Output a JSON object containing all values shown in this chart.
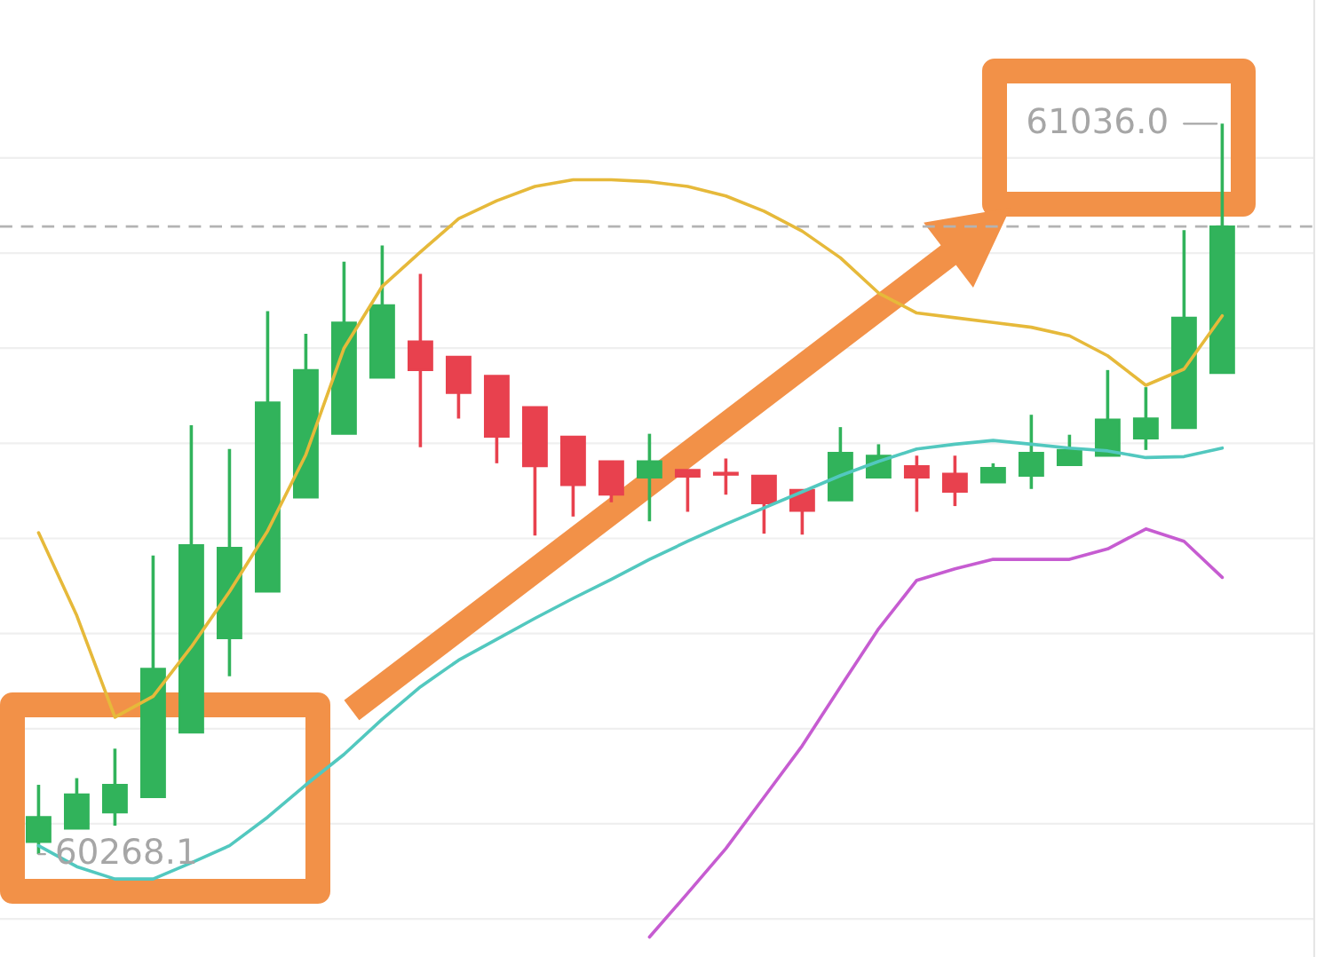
{
  "chart_data": {
    "type": "candlestick",
    "categories": [
      null,
      null,
      null,
      null,
      null,
      null,
      null,
      null,
      null,
      null,
      null,
      null,
      null,
      null,
      null,
      null,
      null,
      null,
      null,
      null,
      null,
      null,
      null,
      null,
      null,
      null,
      null,
      null,
      null,
      null,
      null,
      null
    ],
    "ohlc": [
      [
        60281,
        60341,
        60268.1,
        60307
      ],
      [
        60295,
        60348,
        60295,
        60331
      ],
      [
        60312,
        60379,
        60298,
        60341
      ],
      [
        60328,
        60582,
        60328,
        60463
      ],
      [
        60396,
        60719,
        60396,
        60593
      ],
      [
        60495,
        60694,
        60455,
        60590
      ],
      [
        60544,
        60839,
        60544,
        60743
      ],
      [
        60643,
        60815,
        60643,
        60777
      ],
      [
        60710,
        60891,
        60710,
        60827
      ],
      [
        60769,
        60908,
        60769,
        60845
      ],
      [
        60807,
        60878,
        60696,
        60777
      ],
      [
        60791,
        60791,
        60726,
        60753
      ],
      [
        60771,
        60771,
        60679,
        60707
      ],
      [
        60738,
        60738,
        60603,
        60676
      ],
      [
        60707,
        60707,
        60623,
        60656
      ],
      [
        60681,
        60681,
        60638,
        60646
      ],
      [
        60664,
        60710,
        60618,
        60681
      ],
      [
        60672,
        60672,
        60628,
        60665
      ],
      [
        60669,
        60684,
        60646,
        60667
      ],
      [
        60666,
        60666,
        60605,
        60637
      ],
      [
        60651,
        60651,
        60604,
        60629
      ],
      [
        60640,
        60717,
        60640,
        60690
      ],
      [
        60664,
        60699,
        60664,
        60687
      ],
      [
        60676,
        60687,
        60628,
        60664
      ],
      [
        60668,
        60687,
        60634,
        60649
      ],
      [
        60659,
        60679,
        60659,
        60674
      ],
      [
        60666,
        60730,
        60652,
        60690
      ],
      [
        60677,
        60709,
        60677,
        60693
      ],
      [
        60687,
        60777,
        60687,
        60725
      ],
      [
        60705,
        60759,
        60693,
        60726
      ],
      [
        60716,
        60924,
        60716,
        60832
      ],
      [
        60774,
        61036.0,
        60774,
        60928
      ]
    ],
    "colors": [
      "#31b35b",
      "#31b35b",
      "#31b35b",
      "#31b35b",
      "#31b35b",
      "#31b35b",
      "#31b35b",
      "#31b35b",
      "#31b35b",
      "#31b35b",
      "#e8414e",
      "#e8414e",
      "#e8414e",
      "#e8414e",
      "#e8414e",
      "#e8414e",
      "#31b35b",
      "#e8414e",
      "#e8414e",
      "#e8414e",
      "#e8414e",
      "#31b35b",
      "#31b35b",
      "#e8414e",
      "#e8414e",
      "#31b35b",
      "#31b35b",
      "#31b35b",
      "#31b35b",
      "#31b35b",
      "#31b35b",
      "#31b35b"
    ],
    "series": [
      {
        "type": "line",
        "color": "#e6b93a",
        "values": [
          60606,
          60519,
          60412,
          60434,
          60486,
          60544,
          60608,
          60688,
          60800,
          60865,
          60901,
          60936,
          60955,
          60970,
          60977,
          60977,
          60975,
          60970,
          60960,
          60944,
          60923,
          60895,
          60858,
          60837,
          60832,
          60827,
          60822,
          60813,
          60792,
          60761,
          60778,
          60834
        ]
      },
      {
        "type": "line",
        "color": "#52c8bf",
        "values": [
          60277,
          60255,
          60242,
          60242,
          60259,
          60277,
          60307,
          60341,
          60373,
          60410,
          60444,
          60472,
          60494,
          60516,
          60537,
          60557,
          60578,
          60597,
          60615,
          60632,
          60649,
          60666,
          60681,
          60694,
          60699,
          60703,
          60699,
          60695,
          60692,
          60685,
          60686,
          60695
        ]
      },
      {
        "type": "line",
        "color": "#c65cd1",
        "values": [
          null,
          null,
          null,
          null,
          null,
          null,
          null,
          null,
          null,
          null,
          null,
          null,
          null,
          null,
          null,
          null,
          60181,
          60227,
          60274,
          60328,
          60382,
          60444,
          60505,
          60556,
          60568,
          60578,
          60578,
          60578,
          60589,
          60610,
          60597,
          60559
        ]
      }
    ],
    "yticks": [
      {
        "value": 60200,
        "label": null
      },
      {
        "value": 60300,
        "label": null
      },
      {
        "value": 60400,
        "label": null
      },
      {
        "value": 60500,
        "label": null
      },
      {
        "value": 60600,
        "label": null
      },
      {
        "value": 60700,
        "label": null
      },
      {
        "value": 60800,
        "label": null
      },
      {
        "value": 60900,
        "label": null
      },
      {
        "value": 61000,
        "label": null
      }
    ],
    "grid": "y",
    "ref_lines": [
      {
        "axis": "y",
        "value": 60928,
        "color": "#b3b3b3",
        "line_style": "dashed"
      }
    ],
    "annotations": [
      "61036.0",
      "60268.1"
    ]
  }
}
